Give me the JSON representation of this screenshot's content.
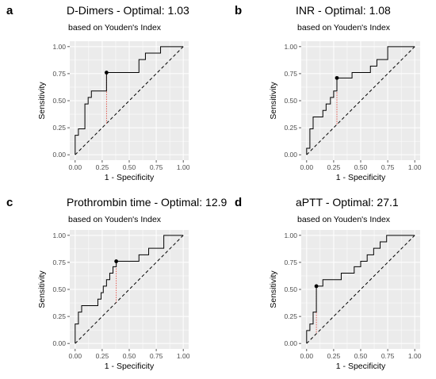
{
  "chart_data": [
    {
      "type": "line",
      "panel": "a",
      "title": "D-Dimers - Optimal: 1.03",
      "subtitle": "based on Youden's Index",
      "xlabel": "1 - Specificity",
      "ylabel": "Sensitivity",
      "xlim": [
        0,
        1
      ],
      "ylim": [
        0,
        1
      ],
      "xticks": [
        "0.00",
        "0.25",
        "0.50",
        "0.75",
        "1.00"
      ],
      "yticks": [
        "0.00",
        "0.25",
        "0.50",
        "0.75",
        "1.00"
      ],
      "grid": true,
      "optimal_point": {
        "x": 0.29,
        "y": 0.76
      },
      "roc_curve": {
        "x": [
          0,
          0,
          0.03,
          0.03,
          0.09,
          0.09,
          0.12,
          0.12,
          0.15,
          0.15,
          0.21,
          0.21,
          0.29,
          0.29,
          0.59,
          0.59,
          0.65,
          0.65,
          0.79,
          0.79,
          1.0
        ],
        "y": [
          0,
          0.18,
          0.18,
          0.24,
          0.24,
          0.47,
          0.47,
          0.53,
          0.53,
          0.59,
          0.59,
          0.59,
          0.59,
          0.76,
          0.76,
          0.88,
          0.88,
          0.94,
          0.94,
          1.0,
          1.0
        ]
      },
      "reference_line": {
        "x": [
          0,
          1
        ],
        "y": [
          0,
          1
        ]
      }
    },
    {
      "type": "line",
      "panel": "b",
      "title": "INR - Optimal: 1.08",
      "subtitle": "based on Youden's Index",
      "xlabel": "1 - Specificity",
      "ylabel": "Sensitivity",
      "xlim": [
        0,
        1
      ],
      "ylim": [
        0,
        1
      ],
      "xticks": [
        "0.00",
        "0.25",
        "0.50",
        "0.75",
        "1.00"
      ],
      "yticks": [
        "0.00",
        "0.25",
        "0.50",
        "0.75",
        "1.00"
      ],
      "grid": true,
      "optimal_point": {
        "x": 0.28,
        "y": 0.71
      },
      "roc_curve": {
        "x": [
          0,
          0,
          0.03,
          0.03,
          0.06,
          0.06,
          0.15,
          0.15,
          0.18,
          0.18,
          0.22,
          0.22,
          0.25,
          0.25,
          0.28,
          0.28,
          0.38,
          0.38,
          0.42,
          0.42,
          0.59,
          0.59,
          0.65,
          0.65,
          0.75,
          0.75,
          1.0
        ],
        "y": [
          0,
          0.06,
          0.06,
          0.24,
          0.24,
          0.35,
          0.35,
          0.41,
          0.41,
          0.47,
          0.47,
          0.53,
          0.53,
          0.59,
          0.59,
          0.71,
          0.71,
          0.71,
          0.71,
          0.76,
          0.76,
          0.82,
          0.82,
          0.88,
          0.88,
          1.0,
          1.0
        ]
      },
      "reference_line": {
        "x": [
          0,
          1
        ],
        "y": [
          0,
          1
        ]
      }
    },
    {
      "type": "line",
      "panel": "c",
      "title": "Prothrombin time - Optimal: 12.9",
      "subtitle": "based on Youden's Index",
      "xlabel": "1 - Specificity",
      "ylabel": "Sensitivity",
      "xlim": [
        0,
        1
      ],
      "ylim": [
        0,
        1
      ],
      "xticks": [
        "0.00",
        "0.25",
        "0.50",
        "0.75",
        "1.00"
      ],
      "yticks": [
        "0.00",
        "0.25",
        "0.50",
        "0.75",
        "1.00"
      ],
      "grid": true,
      "optimal_point": {
        "x": 0.38,
        "y": 0.76
      },
      "roc_curve": {
        "x": [
          0,
          0,
          0.03,
          0.03,
          0.06,
          0.06,
          0.09,
          0.09,
          0.21,
          0.21,
          0.24,
          0.24,
          0.26,
          0.26,
          0.29,
          0.29,
          0.32,
          0.32,
          0.35,
          0.35,
          0.38,
          0.38,
          0.59,
          0.59,
          0.68,
          0.68,
          0.82,
          0.82,
          1.0
        ],
        "y": [
          0,
          0.18,
          0.18,
          0.29,
          0.29,
          0.35,
          0.35,
          0.35,
          0.35,
          0.41,
          0.41,
          0.47,
          0.47,
          0.53,
          0.53,
          0.59,
          0.59,
          0.65,
          0.65,
          0.71,
          0.71,
          0.76,
          0.76,
          0.82,
          0.82,
          0.88,
          0.88,
          1.0,
          1.0
        ]
      },
      "reference_line": {
        "x": [
          0,
          1
        ],
        "y": [
          0,
          1
        ]
      }
    },
    {
      "type": "line",
      "panel": "d",
      "title": "aPTT - Optimal: 27.1",
      "subtitle": "based on Youden's Index",
      "xlabel": "1 - Specificity",
      "ylabel": "Sensitivity",
      "xlim": [
        0,
        1
      ],
      "ylim": [
        0,
        1
      ],
      "xticks": [
        "0.00",
        "0.25",
        "0.50",
        "0.75",
        "1.00"
      ],
      "yticks": [
        "0.00",
        "0.25",
        "0.50",
        "0.75",
        "1.00"
      ],
      "grid": true,
      "optimal_point": {
        "x": 0.09,
        "y": 0.53
      },
      "roc_curve": {
        "x": [
          0,
          0,
          0.03,
          0.03,
          0.06,
          0.06,
          0.09,
          0.09,
          0.15,
          0.15,
          0.32,
          0.32,
          0.44,
          0.44,
          0.5,
          0.5,
          0.56,
          0.56,
          0.62,
          0.62,
          0.68,
          0.68,
          0.74,
          0.74,
          0.82,
          0.82,
          1.0
        ],
        "y": [
          0,
          0.12,
          0.12,
          0.18,
          0.18,
          0.29,
          0.29,
          0.53,
          0.53,
          0.59,
          0.59,
          0.65,
          0.65,
          0.71,
          0.71,
          0.76,
          0.76,
          0.82,
          0.82,
          0.88,
          0.88,
          0.94,
          0.94,
          1.0,
          1.0,
          1.0,
          1.0
        ]
      },
      "reference_line": {
        "x": [
          0,
          1
        ],
        "y": [
          0,
          1
        ]
      }
    }
  ],
  "colors": {
    "panel_background": "#ebebeb",
    "gridline": "#ffffff",
    "curve": "#000000",
    "reference": "#000000",
    "optimal_dropline": "#e03c31",
    "tick_text": "#4d4d4d"
  }
}
